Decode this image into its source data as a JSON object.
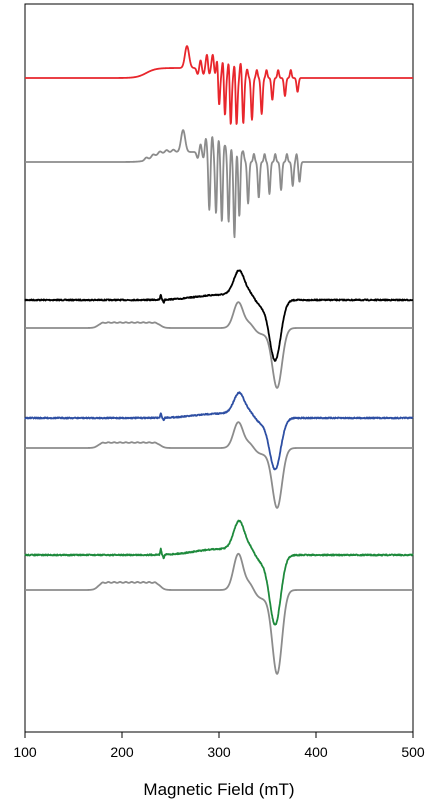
{
  "chart_data": {
    "type": "line",
    "title": "",
    "xlabel": "Magnetic Field (mT)",
    "ylabel": "",
    "xlim": [
      100,
      500
    ],
    "xticks": [
      100,
      200,
      300,
      400,
      500
    ],
    "tick_labels": [
      "100",
      "200",
      "300",
      "400",
      "500"
    ],
    "grid": false,
    "legend": "none",
    "series": [
      {
        "kind": "exp-fine",
        "baseline": 78,
        "color": "#e8262c",
        "scale": 1.0
      },
      {
        "kind": "sim-fine",
        "baseline": 162,
        "color": "#8c8c8c",
        "scale": 1.0
      },
      {
        "kind": "exp-broad",
        "baseline": 300,
        "color": "#000000",
        "scale": 1.0,
        "noise": 0.6
      },
      {
        "kind": "sim-broad",
        "baseline": 328,
        "color": "#8c8c8c",
        "scale": 1.0
      },
      {
        "kind": "exp-broad",
        "baseline": 418,
        "color": "#2e4fa3",
        "scale": 0.85,
        "noise": 0.6
      },
      {
        "kind": "sim-broad",
        "baseline": 448,
        "color": "#8c8c8c",
        "scale": 1.0
      },
      {
        "kind": "exp-broad",
        "baseline": 555,
        "color": "#1e8a3c",
        "scale": 1.15,
        "noise": 0.6
      },
      {
        "kind": "sim-broad",
        "baseline": 590,
        "color": "#8c8c8c",
        "scale": 1.4
      }
    ]
  }
}
